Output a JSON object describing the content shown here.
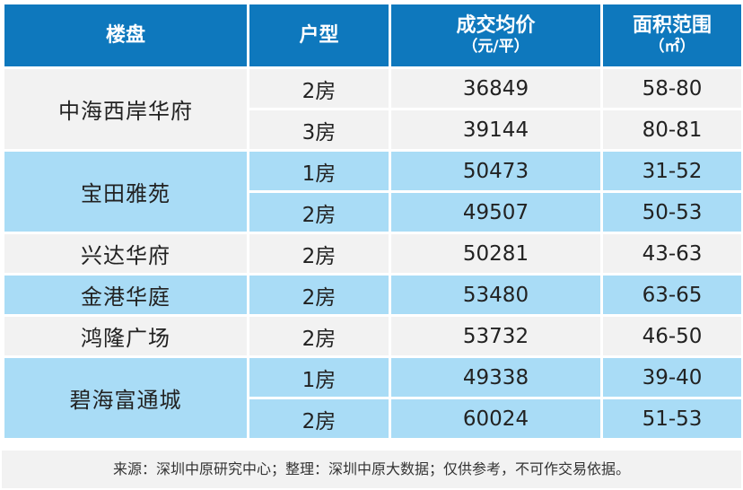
{
  "header": {
    "col1": "楼盘",
    "col2": "户型",
    "col3": "成交均价",
    "col3_sub": "（元/平）",
    "col4": "面积范围",
    "col4_sub": "（㎡）"
  },
  "rows": [
    {
      "name": "中海西岸华府",
      "type": "2房",
      "price": "36849",
      "area": "58-80"
    },
    {
      "type": "3房",
      "price": "39144",
      "area": "80-81"
    },
    {
      "name": "宝田雅苑",
      "type": "1房",
      "price": "50473",
      "area": "31-52"
    },
    {
      "type": "2房",
      "price": "49507",
      "area": "50-53"
    },
    {
      "name": "兴达华府",
      "type": "2房",
      "price": "50281",
      "area": "43-63"
    },
    {
      "name": "金港华庭",
      "type": "2房",
      "price": "53480",
      "area": "63-65"
    },
    {
      "name": "鸿隆广场",
      "type": "2房",
      "price": "53732",
      "area": "46-50"
    },
    {
      "name": "碧海富通城",
      "type": "1房",
      "price": "49338",
      "area": "39-40"
    },
    {
      "type": "2房",
      "price": "60024",
      "area": "51-53"
    }
  ],
  "source": "来源：深圳中原研究中心；整理：深圳中原大数据；仅供参考，不可作交易依据。",
  "colors": {
    "header_bg": "#0e78bd",
    "row_grey": "#f2f2f2",
    "row_blue": "#a9dcf6"
  }
}
